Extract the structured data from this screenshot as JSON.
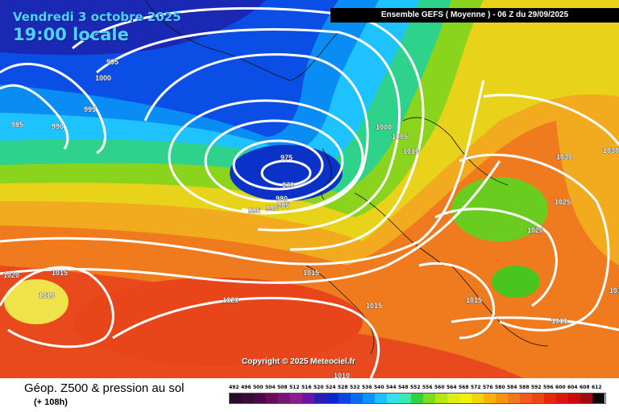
{
  "header": {
    "date_line": "Vendredi 3 octobre 2025",
    "time_line": "19:00 locale",
    "run_info": "Ensemble GEFS  ( Moyenne )  -  06 Z du 29/09/2025"
  },
  "map": {
    "copyright": "Copyright © 2025 Meteociel.fr",
    "isobar_labels": [
      "995",
      "1005",
      "1000",
      "995",
      "985",
      "990",
      "1010",
      "1000",
      "1005",
      "1010",
      "975",
      "970",
      "980",
      "985",
      "995",
      "990",
      "1030",
      "1025",
      "1020",
      "1020",
      "1015",
      "1010",
      "1015",
      "1020",
      "1015",
      "1015",
      "1010",
      "1010",
      "1010",
      "1030"
    ],
    "colors": {
      "isobar": "#ffffff",
      "low_center": "#0a3fd6",
      "high_center": "#e83a1c"
    }
  },
  "footer": {
    "title": "Géop. Z500 & pression au sol",
    "subtitle": "(+ 108h)"
  },
  "legend": {
    "values": [
      "492",
      "496",
      "500",
      "504",
      "508",
      "512",
      "516",
      "520",
      "524",
      "528",
      "532",
      "536",
      "540",
      "544",
      "548",
      "552",
      "556",
      "560",
      "564",
      "568",
      "572",
      "576",
      "580",
      "584",
      "588",
      "592",
      "596",
      "600",
      "604",
      "608",
      "612"
    ],
    "colors": [
      "#2a0a2a",
      "#3a0a3a",
      "#4a0a4a",
      "#6a0a5a",
      "#7a147a",
      "#8a1e8a",
      "#6a14a8",
      "#2a1eb0",
      "#0a28c8",
      "#0a46e6",
      "#0a6af0",
      "#0a94ff",
      "#1ec2ff",
      "#3adcf0",
      "#3ae8b4",
      "#32d23c",
      "#7adc1e",
      "#b4e614",
      "#dcee14",
      "#f0f00a",
      "#f5d20a",
      "#f5b40a",
      "#f5960a",
      "#f0781e",
      "#f05a1e",
      "#eb4614",
      "#e6280a",
      "#dc140a",
      "#c80a0a",
      "#a00a0a",
      "#0a0a0a"
    ]
  }
}
